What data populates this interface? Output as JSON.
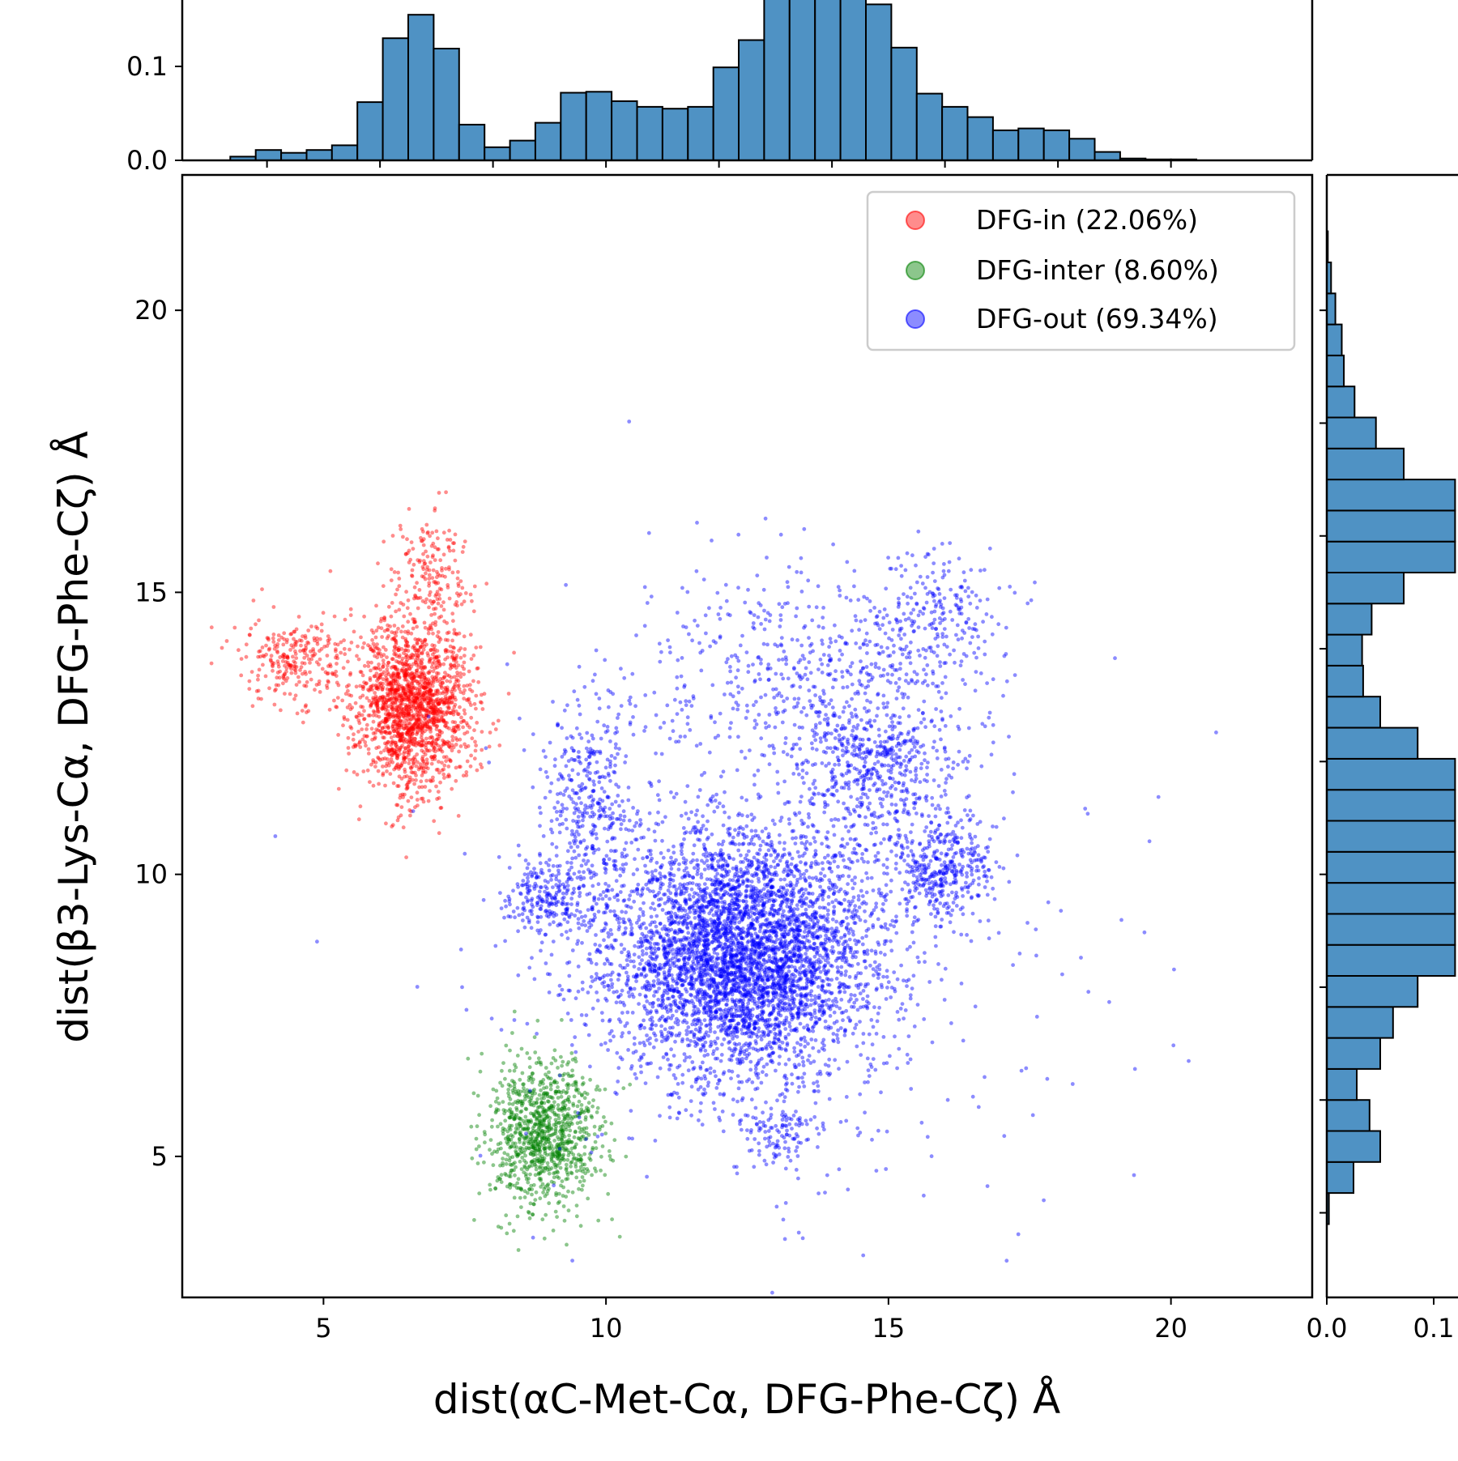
{
  "chart_data": {
    "type": "scatter",
    "xlabel": "dist(αC-Met-Cα, DFG-Phe-Cζ) Å",
    "ylabel": "dist(β3-Lys-Cα, DFG-Phe-Cζ) Å",
    "xlim": [
      2.5,
      22.5
    ],
    "ylim": [
      2.5,
      22.4
    ],
    "x_ticks": [
      5,
      10,
      15,
      20
    ],
    "y_ticks": [
      5,
      10,
      15,
      20
    ],
    "grid": false,
    "legend": {
      "position": "top-right",
      "entries": [
        "DFG-in (22.06%)",
        "DFG-inter (8.60%)",
        "DFG-out (69.34%)"
      ]
    },
    "series": [
      {
        "name": "DFG-in (22.06%)",
        "color": "#ff0000",
        "point_count": 2200,
        "clusters": [
          {
            "center": [
              6.6,
              13.0
            ],
            "spread": [
              0.5,
              0.75
            ],
            "weight": 0.8
          },
          {
            "center": [
              4.5,
              13.8
            ],
            "spread": [
              0.5,
              0.4
            ],
            "weight": 0.12
          },
          {
            "center": [
              6.9,
              15.3
            ],
            "spread": [
              0.35,
              0.5
            ],
            "weight": 0.08
          }
        ]
      },
      {
        "name": "DFG-inter (8.60%)",
        "color": "#008000",
        "point_count": 1000,
        "clusters": [
          {
            "center": [
              8.9,
              5.4
            ],
            "spread": [
              0.5,
              0.65
            ],
            "weight": 1.0
          }
        ]
      },
      {
        "name": "DFG-out (69.34%)",
        "color": "#0000ff",
        "point_count": 7500,
        "clusters": [
          {
            "center": [
              12.4,
              8.6
            ],
            "spread": [
              1.2,
              1.1
            ],
            "weight": 0.62
          },
          {
            "center": [
              14.8,
              12.0
            ],
            "spread": [
              0.7,
              0.8
            ],
            "weight": 0.08
          },
          {
            "center": [
              16.0,
              10.1
            ],
            "spread": [
              0.45,
              0.45
            ],
            "weight": 0.05
          },
          {
            "center": [
              9.7,
              11.4
            ],
            "spread": [
              0.45,
              0.9
            ],
            "weight": 0.05
          },
          {
            "center": [
              9.0,
              9.6
            ],
            "spread": [
              0.4,
              0.35
            ],
            "weight": 0.03
          },
          {
            "center": [
              13.5,
              13.5
            ],
            "spread": [
              1.4,
              1.0
            ],
            "weight": 0.06
          },
          {
            "center": [
              13.1,
              5.4
            ],
            "spread": [
              0.35,
              0.3
            ],
            "weight": 0.015
          },
          {
            "center": [
              15.8,
              14.6
            ],
            "spread": [
              0.6,
              0.6
            ],
            "weight": 0.03
          },
          {
            "center": [
              13.0,
              9.0
            ],
            "spread": [
              2.8,
              2.8
            ],
            "weight": 0.065
          }
        ]
      }
    ],
    "marginal_x": {
      "type": "bar",
      "color": "#4f92c4",
      "yticks": [
        0.0,
        0.1
      ],
      "bin_edges": [
        3.35,
        3.8,
        4.25,
        4.7,
        5.15,
        5.6,
        6.05,
        6.5,
        6.95,
        7.4,
        7.85,
        8.3,
        8.75,
        9.2,
        9.65,
        10.1,
        10.55,
        11.0,
        11.45,
        11.9,
        12.35,
        12.8,
        13.25,
        13.7,
        14.15,
        14.6,
        15.05,
        15.5,
        15.95,
        16.4,
        16.85,
        17.3,
        17.75,
        18.2,
        18.65,
        19.1,
        19.55,
        20.0,
        20.45,
        20.9
      ],
      "values": [
        0.004,
        0.011,
        0.008,
        0.011,
        0.016,
        0.062,
        0.13,
        0.155,
        0.119,
        0.038,
        0.014,
        0.021,
        0.04,
        0.072,
        0.073,
        0.063,
        0.057,
        0.055,
        0.057,
        0.099,
        0.128,
        0.19,
        0.19,
        0.19,
        0.19,
        0.166,
        0.12,
        0.071,
        0.057,
        0.046,
        0.032,
        0.034,
        0.032,
        0.023,
        0.009,
        0.002,
        0.001,
        0.001,
        0.0
      ]
    },
    "marginal_y": {
      "type": "bar",
      "color": "#4f92c4",
      "xticks": [
        "0.0",
        "0.1"
      ],
      "bin_edges": [
        3.8,
        4.35,
        4.9,
        5.45,
        6.0,
        6.55,
        7.1,
        7.65,
        8.2,
        8.75,
        9.3,
        9.85,
        10.4,
        10.95,
        11.5,
        12.05,
        12.6,
        13.15,
        13.7,
        14.25,
        14.8,
        15.35,
        15.9,
        16.45,
        17.0,
        17.55,
        18.1,
        18.65,
        19.2,
        19.75,
        20.3,
        20.85,
        21.4
      ],
      "values": [
        0.002,
        0.025,
        0.05,
        0.04,
        0.028,
        0.05,
        0.062,
        0.085,
        0.12,
        0.12,
        0.12,
        0.12,
        0.12,
        0.12,
        0.12,
        0.085,
        0.05,
        0.034,
        0.033,
        0.042,
        0.072,
        0.12,
        0.12,
        0.12,
        0.072,
        0.046,
        0.026,
        0.016,
        0.014,
        0.008,
        0.004,
        0.001
      ]
    }
  }
}
